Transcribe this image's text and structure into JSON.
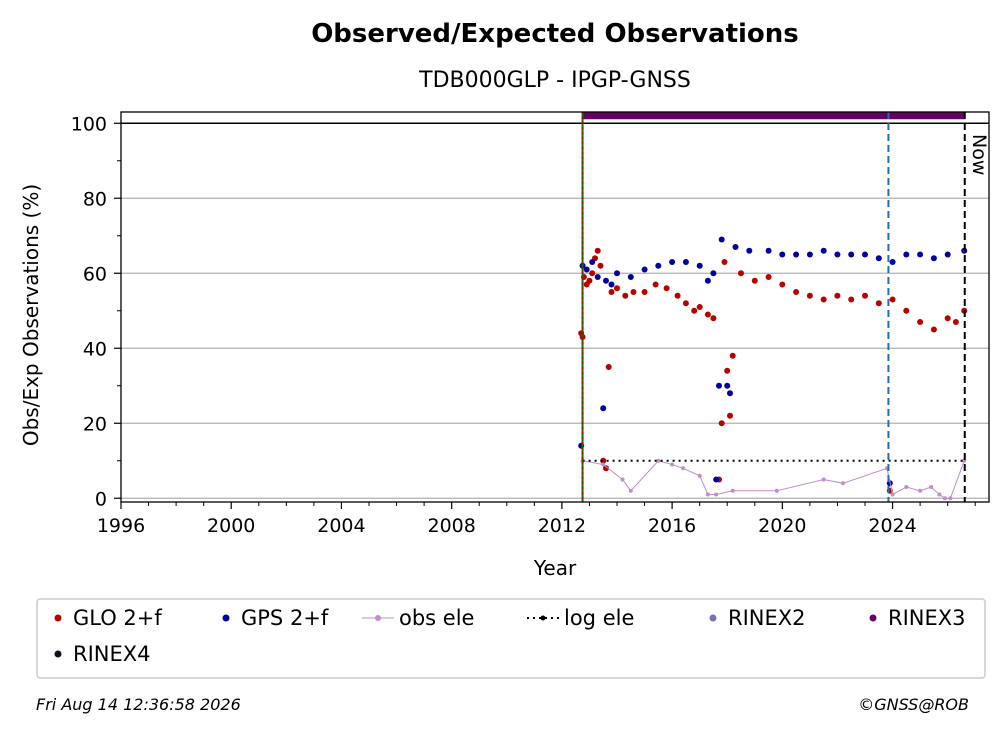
{
  "chart_data": {
    "type": "scatter",
    "title": "Observed/Expected Observations",
    "subtitle": "TDB000GLP - IPGP-GNSS",
    "xlabel": "Year",
    "ylabel": "Obs/Exp Observations (%)",
    "xlim": [
      1996,
      2027.5
    ],
    "ylim": [
      -1,
      103
    ],
    "x_ticks": [
      1996,
      2000,
      2004,
      2008,
      2012,
      2016,
      2020,
      2024
    ],
    "y_ticks": [
      0,
      20,
      40,
      60,
      80,
      100
    ],
    "grid": "horizontal",
    "legend_position": "bottom",
    "reference_lines": [
      {
        "kind": "horizontal",
        "y": 100,
        "color": "#000000",
        "style": "solid"
      },
      {
        "kind": "vertical",
        "x": 2012.75,
        "color": "#007700",
        "style": "solid"
      },
      {
        "kind": "vertical",
        "x": 2012.75,
        "color": "#cc0000",
        "style": "dotted"
      },
      {
        "kind": "vertical",
        "x": 2023.85,
        "color": "#1f6fb4",
        "style": "dashed"
      },
      {
        "kind": "vertical",
        "x": 2026.62,
        "color": "#000000",
        "style": "dashed",
        "label": "Now"
      }
    ],
    "series": [
      {
        "name": "GLO 2+f",
        "color": "#bb0000",
        "marker": "dot",
        "points": [
          [
            2012.7,
            44
          ],
          [
            2012.75,
            43
          ],
          [
            2012.8,
            59
          ],
          [
            2012.9,
            57
          ],
          [
            2013.0,
            58
          ],
          [
            2013.1,
            60
          ],
          [
            2013.2,
            64
          ],
          [
            2013.3,
            66
          ],
          [
            2013.4,
            62
          ],
          [
            2013.5,
            10
          ],
          [
            2013.6,
            8
          ],
          [
            2013.7,
            35
          ],
          [
            2013.8,
            55
          ],
          [
            2014.0,
            56
          ],
          [
            2014.3,
            54
          ],
          [
            2014.6,
            55
          ],
          [
            2015.0,
            55
          ],
          [
            2015.4,
            57
          ],
          [
            2015.8,
            56
          ],
          [
            2016.2,
            54
          ],
          [
            2016.5,
            52
          ],
          [
            2016.8,
            50
          ],
          [
            2017.0,
            51
          ],
          [
            2017.3,
            49
          ],
          [
            2017.5,
            48
          ],
          [
            2017.7,
            5
          ],
          [
            2017.8,
            20
          ],
          [
            2017.9,
            63
          ],
          [
            2018.0,
            34
          ],
          [
            2018.1,
            22
          ],
          [
            2018.2,
            38
          ],
          [
            2018.5,
            60
          ],
          [
            2019.0,
            58
          ],
          [
            2019.5,
            59
          ],
          [
            2020.0,
            57
          ],
          [
            2020.5,
            55
          ],
          [
            2021.0,
            54
          ],
          [
            2021.5,
            53
          ],
          [
            2022.0,
            54
          ],
          [
            2022.5,
            53
          ],
          [
            2023.0,
            54
          ],
          [
            2023.5,
            52
          ],
          [
            2023.9,
            2
          ],
          [
            2024.0,
            53
          ],
          [
            2024.5,
            50
          ],
          [
            2025.0,
            47
          ],
          [
            2025.5,
            45
          ],
          [
            2026.0,
            48
          ],
          [
            2026.3,
            47
          ],
          [
            2026.6,
            50
          ]
        ]
      },
      {
        "name": "GPS 2+f",
        "color": "#0000a0",
        "marker": "dot",
        "points": [
          [
            2012.7,
            14
          ],
          [
            2012.75,
            62
          ],
          [
            2012.9,
            61
          ],
          [
            2013.1,
            63
          ],
          [
            2013.3,
            59
          ],
          [
            2013.5,
            24
          ],
          [
            2013.6,
            58
          ],
          [
            2013.8,
            57
          ],
          [
            2014.0,
            60
          ],
          [
            2014.5,
            59
          ],
          [
            2015.0,
            61
          ],
          [
            2015.5,
            62
          ],
          [
            2016.0,
            63
          ],
          [
            2016.5,
            63
          ],
          [
            2017.0,
            62
          ],
          [
            2017.3,
            58
          ],
          [
            2017.5,
            60
          ],
          [
            2017.6,
            5
          ],
          [
            2017.7,
            30
          ],
          [
            2017.8,
            69
          ],
          [
            2018.0,
            30
          ],
          [
            2018.1,
            28
          ],
          [
            2018.3,
            67
          ],
          [
            2018.8,
            66
          ],
          [
            2019.5,
            66
          ],
          [
            2020.0,
            65
          ],
          [
            2020.5,
            65
          ],
          [
            2021.0,
            65
          ],
          [
            2021.5,
            66
          ],
          [
            2022.0,
            65
          ],
          [
            2022.5,
            65
          ],
          [
            2023.0,
            65
          ],
          [
            2023.5,
            64
          ],
          [
            2023.9,
            4
          ],
          [
            2024.0,
            63
          ],
          [
            2024.5,
            65
          ],
          [
            2025.0,
            65
          ],
          [
            2025.5,
            64
          ],
          [
            2026.0,
            65
          ],
          [
            2026.6,
            66
          ]
        ]
      },
      {
        "name": "obs ele",
        "color": "#c08ccc",
        "marker": "dot-line",
        "points": [
          [
            2012.75,
            10
          ],
          [
            2013.5,
            9
          ],
          [
            2014.2,
            5
          ],
          [
            2014.5,
            2
          ],
          [
            2015.5,
            10
          ],
          [
            2016.0,
            9
          ],
          [
            2016.4,
            8
          ],
          [
            2017.0,
            6
          ],
          [
            2017.3,
            1
          ],
          [
            2017.6,
            1
          ],
          [
            2018.2,
            2
          ],
          [
            2019.8,
            2
          ],
          [
            2021.5,
            5
          ],
          [
            2022.2,
            4
          ],
          [
            2023.8,
            8
          ],
          [
            2024.0,
            1
          ],
          [
            2024.5,
            3
          ],
          [
            2025.0,
            2
          ],
          [
            2025.4,
            3
          ],
          [
            2025.7,
            1
          ],
          [
            2025.9,
            0
          ],
          [
            2026.1,
            0
          ],
          [
            2026.6,
            10
          ]
        ]
      },
      {
        "name": "log ele",
        "color": "#000000",
        "marker": "dotted-line",
        "points": [
          [
            2012.75,
            10
          ],
          [
            2026.62,
            10
          ]
        ]
      },
      {
        "name": "RINEX2",
        "color": "#7b6fb8",
        "marker": "dot",
        "points": []
      },
      {
        "name": "RINEX3",
        "color": "#660066",
        "marker": "thick-bar",
        "points": [
          [
            2012.75,
            102
          ],
          [
            2023.85,
            102
          ],
          [
            2026.62,
            102
          ]
        ]
      },
      {
        "name": "RINEX4",
        "color": "#1a0a1a",
        "marker": "dot",
        "points": []
      }
    ]
  },
  "footer": {
    "timestamp": "Fri Aug 14 12:36:58 2026",
    "credit": "©GNSS@ROB"
  }
}
